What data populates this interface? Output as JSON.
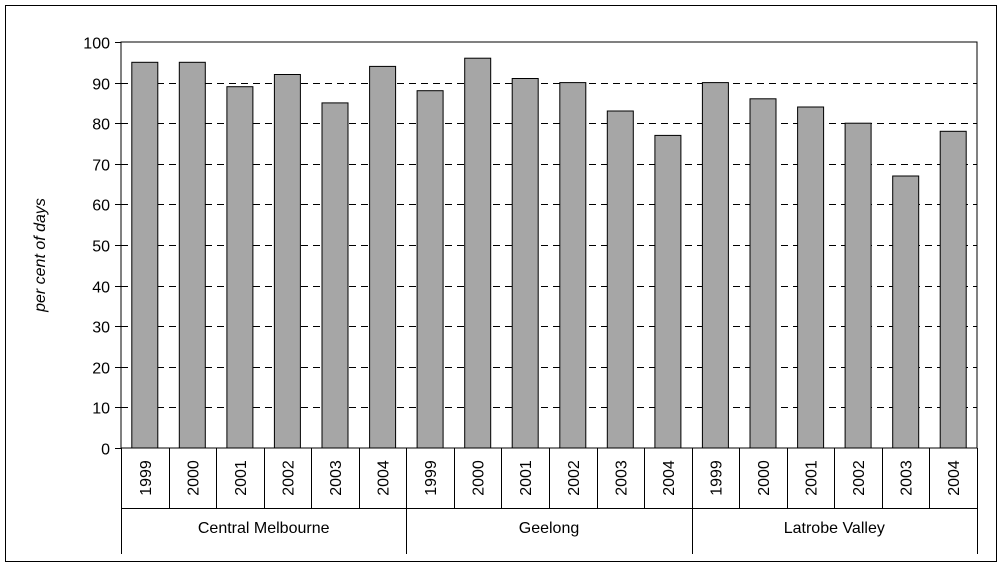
{
  "chart_data": {
    "type": "bar",
    "ylabel": "per cent of days",
    "xlabel": "",
    "ylim": [
      0,
      100
    ],
    "ytick_step": 10,
    "grid": "horizontal dashed",
    "bar_color": "#a6a6a6",
    "groups": [
      {
        "name": "Central Melbourne",
        "categories": [
          "1999",
          "2000",
          "2001",
          "2002",
          "2003",
          "2004"
        ],
        "values": [
          95,
          95,
          89,
          92,
          85,
          94
        ]
      },
      {
        "name": "Geelong",
        "categories": [
          "1999",
          "2000",
          "2001",
          "2002",
          "2003",
          "2004"
        ],
        "values": [
          88,
          96,
          91,
          90,
          83,
          77
        ]
      },
      {
        "name": "Latrobe Valley",
        "categories": [
          "1999",
          "2000",
          "2001",
          "2002",
          "2003",
          "2004"
        ],
        "values": [
          90,
          86,
          84,
          80,
          67,
          78
        ]
      }
    ]
  }
}
